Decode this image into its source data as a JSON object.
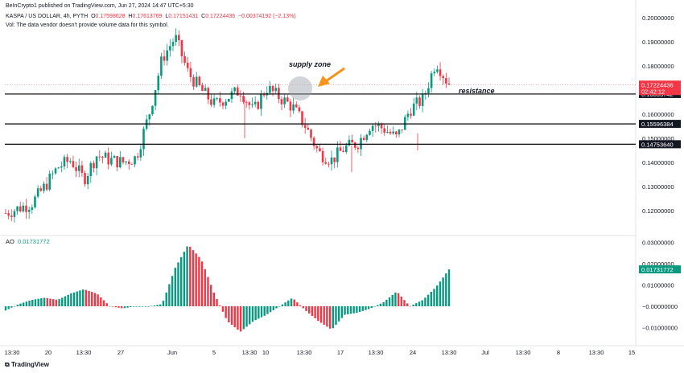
{
  "header": {
    "credit": "BeInCrypto1 published on TradingView.com, Jun 27, 2024 14:47 UTC+5:30",
    "symbol": "KASPA / US DOLLAR, 4h, PYTH",
    "o_label": "O",
    "o_val": "0.17598628",
    "h_label": "H",
    "h_val": "0.17613769",
    "l_label": "L",
    "l_val": "0.17151431",
    "c_label": "C",
    "c_val": "0.17224436",
    "change": "−0.00374192 (−2.13%)",
    "vol_note": "Vol: The data vendor doesn't provide volume data for this symbol."
  },
  "ao_label": {
    "name": "AO",
    "value": "0.01731772"
  },
  "footer": {
    "brand": "TradingView"
  },
  "colors": {
    "up": "#089981",
    "down": "#f23645",
    "accent": "#f7931a",
    "line": "#000000"
  },
  "chart_data": [
    {
      "type": "candlestick",
      "price_axis": {
        "range": [
          0.115,
          0.205
        ],
        "ticks": [
          "0.20000000",
          "0.19000000",
          "0.18000000",
          "0.17000000",
          "0.16000000",
          "0.15000000",
          "0.14000000",
          "0.13000000",
          "0.12000000"
        ]
      },
      "time_axis": {
        "ticks": [
          "13:30",
          "20",
          "13:30",
          "27",
          "Jun",
          "5",
          "13:30",
          "10",
          "13:30",
          "17",
          "13:30",
          "24",
          "13:30",
          "Jul",
          "13:30",
          "8",
          "13:30",
          "15"
        ]
      },
      "approx_close_path": [
        0.119,
        0.121,
        0.123,
        0.13,
        0.138,
        0.141,
        0.133,
        0.143,
        0.141,
        0.14,
        0.142,
        0.16,
        0.183,
        0.192,
        0.177,
        0.17,
        0.164,
        0.167,
        0.17,
        0.161,
        0.171,
        0.167,
        0.163,
        0.155,
        0.144,
        0.141,
        0.146,
        0.148,
        0.156,
        0.154,
        0.15,
        0.162,
        0.166,
        0.182,
        0.172
      ],
      "horizontal_levels": [
        {
          "price": 0.16835742,
          "label": "0.16835742"
        },
        {
          "price": 0.15596384,
          "label": "0.15596384"
        },
        {
          "price": 0.1475364,
          "label": "0.14753640"
        }
      ],
      "last_price": {
        "value": "0.17224436",
        "countdown": "02:42:12"
      },
      "annotations": [
        {
          "text": "supply zone"
        },
        {
          "text": "resistance"
        }
      ]
    },
    {
      "type": "bar",
      "name": "AO",
      "axis": {
        "range": [
          -0.014,
          0.032
        ],
        "ticks": [
          "0.03000000",
          "0.02000000",
          "0.01000000",
          "−0.00000000",
          "−0.01000000"
        ]
      },
      "last_value": "0.01731772",
      "approx_path": [
        -0.002,
        0.001,
        0.003,
        0.004,
        0.003,
        0.006,
        0.008,
        0.006,
        0.0,
        -0.001,
        0.0,
        0.0,
        0.001,
        0.018,
        0.029,
        0.022,
        0.006,
        -0.007,
        -0.012,
        -0.007,
        -0.004,
        0.0,
        0.004,
        -0.002,
        -0.007,
        -0.011,
        -0.004,
        -0.003,
        -0.001,
        0.002,
        0.007,
        0.0,
        0.003,
        0.009,
        0.0173
      ]
    }
  ]
}
